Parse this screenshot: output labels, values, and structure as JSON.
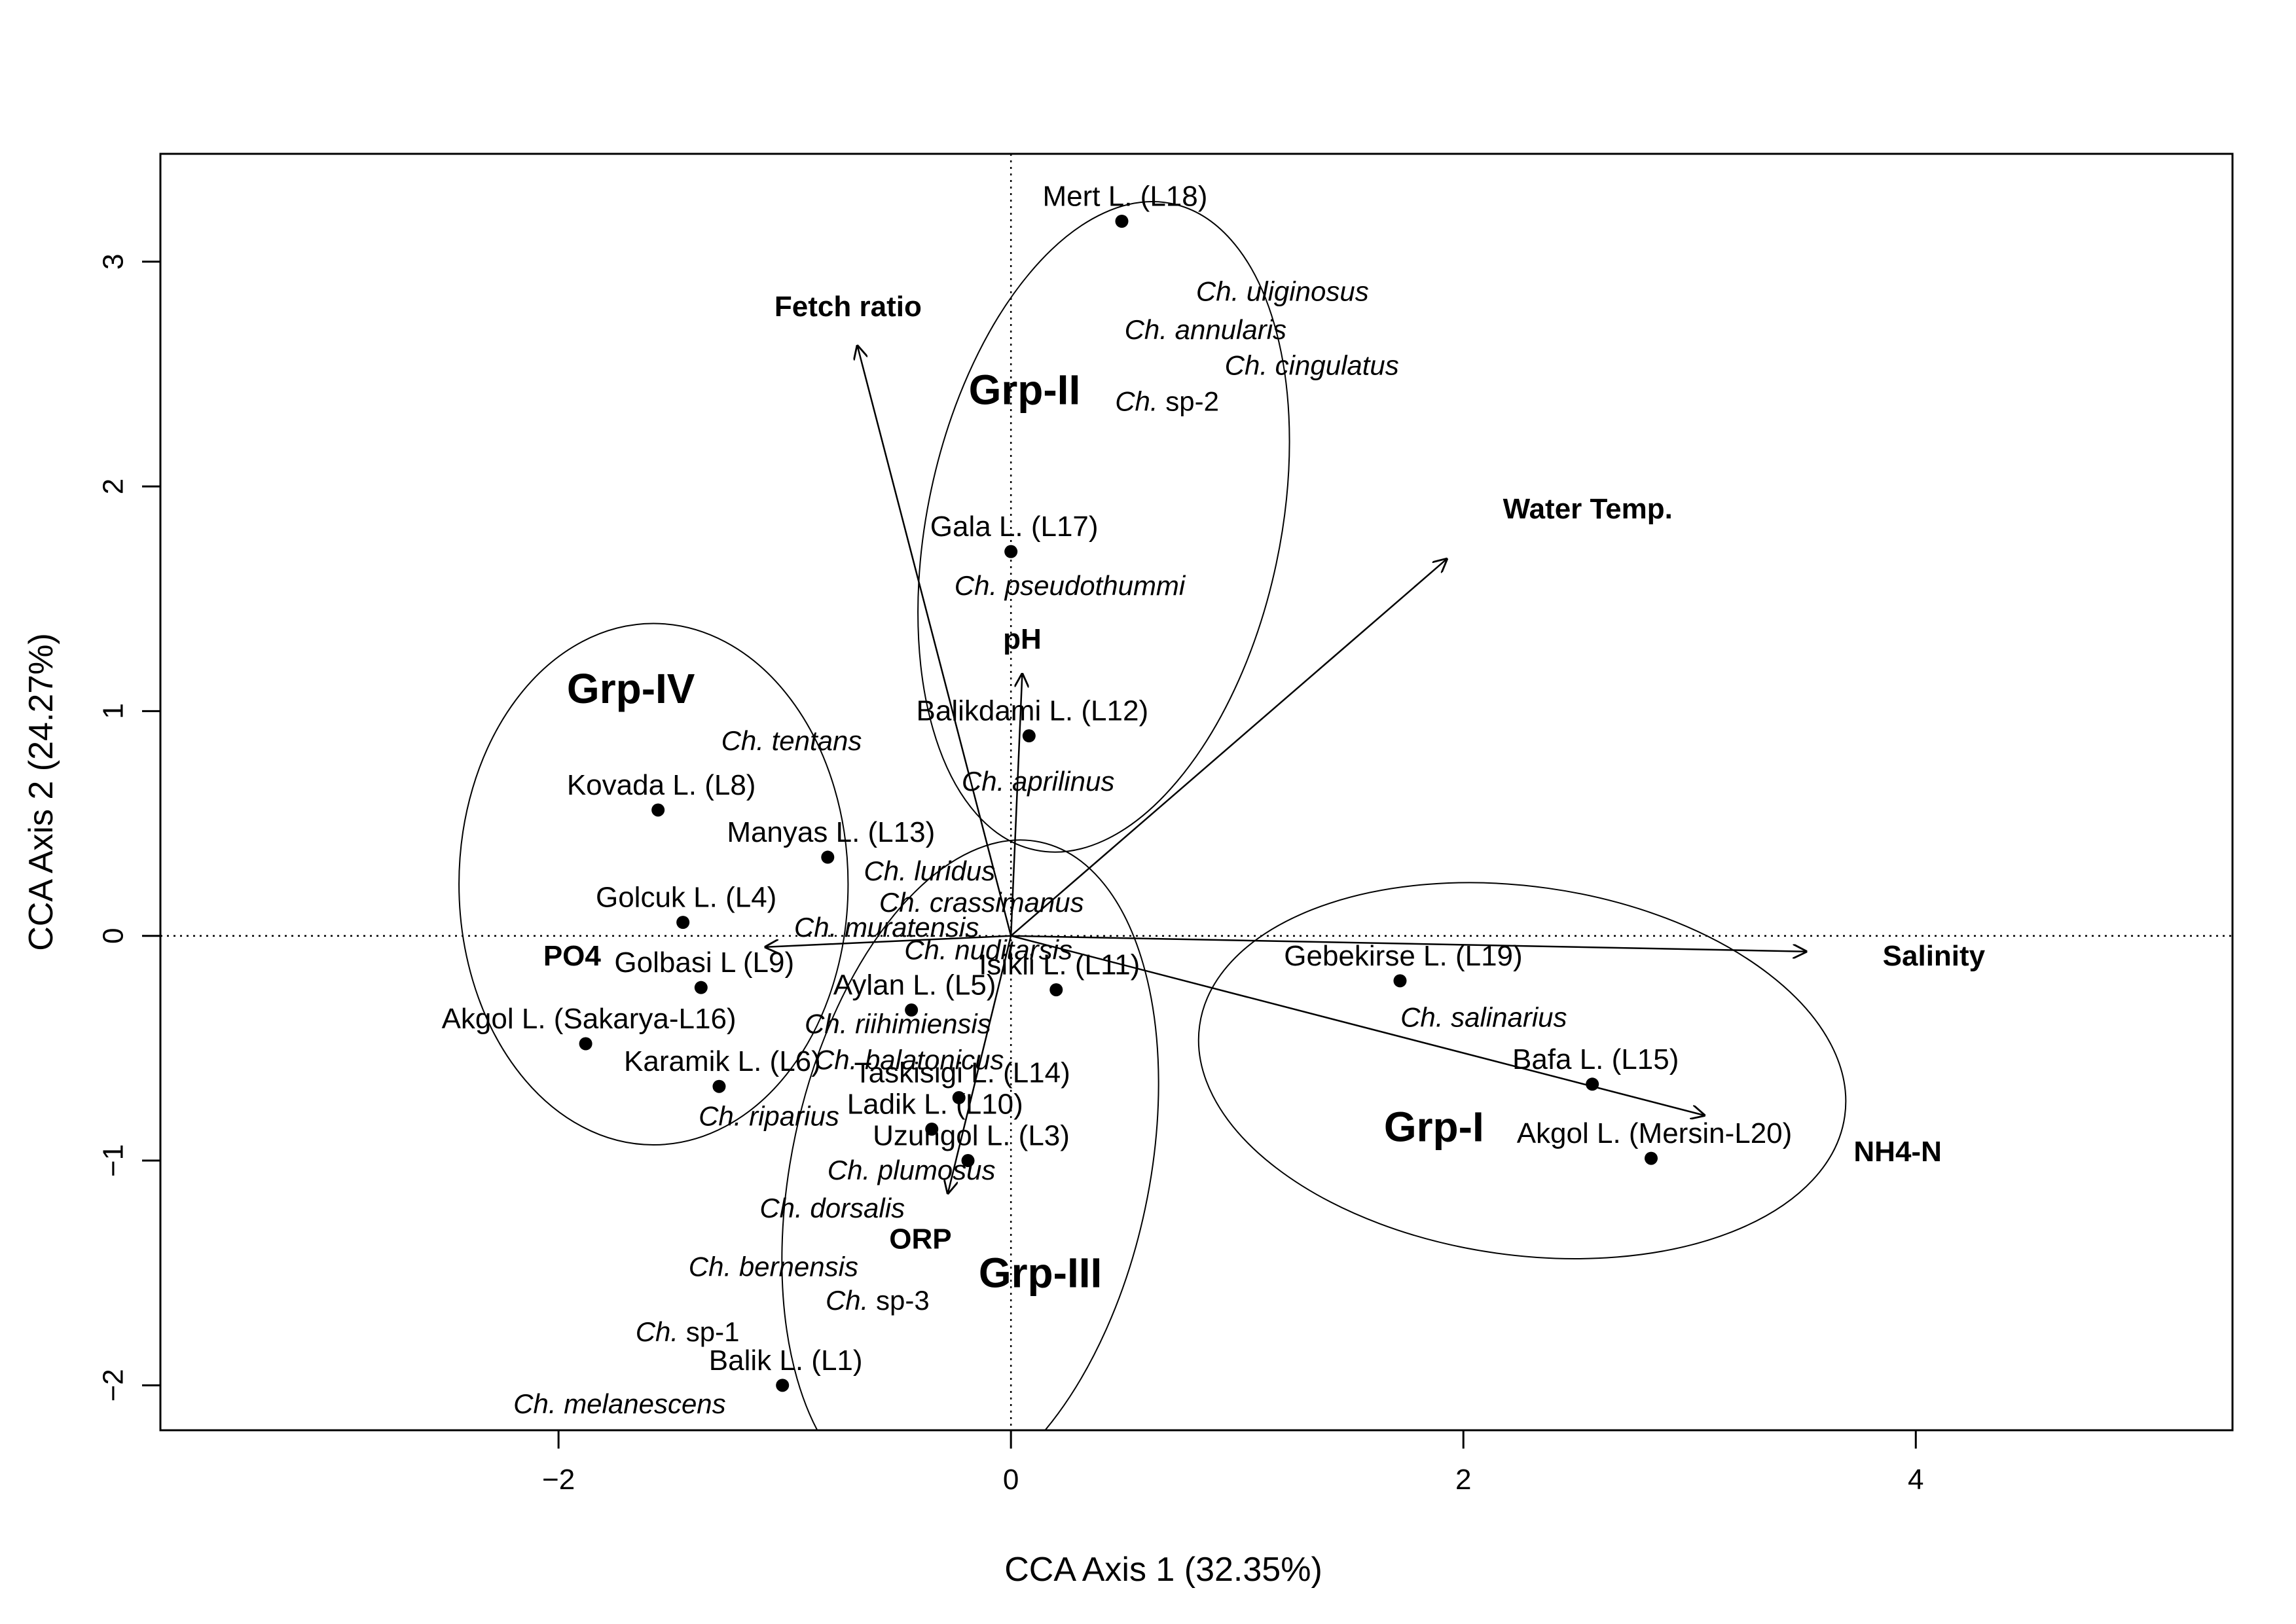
{
  "chart_data": {
    "type": "scatter",
    "title": "",
    "xlabel": "CCA Axis 1 (32.35%)",
    "ylabel": "CCA Axis 2 (24.27%)",
    "xlim": [
      -3.76,
      5.4
    ],
    "ylim": [
      -2.2,
      3.48
    ],
    "xticks": [
      -2,
      0,
      2,
      4
    ],
    "yticks": [
      -2,
      -1,
      0,
      1,
      2,
      3
    ],
    "reference_lines": [
      "x = 0",
      "y = 0"
    ],
    "grid": false,
    "legend": "none",
    "sites": [
      {
        "label": "Mert L. (L18)",
        "x": 0.49,
        "y": 3.18
      },
      {
        "label": "Gala L. (L17)",
        "x": 0.0,
        "y": 1.71
      },
      {
        "label": "Balikdami L. (L12)",
        "x": 0.08,
        "y": 0.89
      },
      {
        "label": "Kovada L. (L8)",
        "x": -1.56,
        "y": 0.56
      },
      {
        "label": "Manyas L. (L13)",
        "x": -0.81,
        "y": 0.35
      },
      {
        "label": "Golcuk L. (L4)",
        "x": -1.45,
        "y": 0.06
      },
      {
        "label": "Golbasi L (L9)",
        "x": -1.37,
        "y": -0.23
      },
      {
        "label": "Aylan L. (L5)",
        "x": -0.44,
        "y": -0.33
      },
      {
        "label": "Isikli L. (L11)",
        "x": 0.2,
        "y": -0.24
      },
      {
        "label": "Akgol L. (Sakarya-L16)",
        "x": -1.88,
        "y": -0.48
      },
      {
        "label": "Karamik L. (L6)",
        "x": -1.29,
        "y": -0.67
      },
      {
        "label": "Taskisigi L. (L14)",
        "x": -0.23,
        "y": -0.72
      },
      {
        "label": "Ladik L. (L10)",
        "x": -0.35,
        "y": -0.86
      },
      {
        "label": "Uzungol L. (L3)",
        "x": -0.19,
        "y": -1.0
      },
      {
        "label": "Balik L. (L1)",
        "x": -1.01,
        "y": -2.0
      },
      {
        "label": "Gebekirse L. (L19)",
        "x": 1.72,
        "y": -0.2
      },
      {
        "label": "Bafa L. (L15)",
        "x": 2.57,
        "y": -0.66
      },
      {
        "label": "Akgol L. (Mersin-L20)",
        "x": 2.83,
        "y": -0.99
      }
    ],
    "species": [
      {
        "genus": "Ch.",
        "epithet": "uliginosus",
        "italic_epithet": true,
        "x": 1.2,
        "y": 2.87
      },
      {
        "genus": "Ch.",
        "epithet": "annularis",
        "italic_epithet": true,
        "x": 0.86,
        "y": 2.7
      },
      {
        "genus": "Ch.",
        "epithet": "cingulatus",
        "italic_epithet": true,
        "x": 1.33,
        "y": 2.54
      },
      {
        "genus": "Ch.",
        "epithet": "sp-2",
        "italic_epithet": false,
        "x": 0.69,
        "y": 2.38
      },
      {
        "genus": "Ch.",
        "epithet": "pseudothummi",
        "italic_epithet": true,
        "x": 0.26,
        "y": 1.56
      },
      {
        "genus": "Ch.",
        "epithet": "tentans",
        "italic_epithet": true,
        "x": -0.97,
        "y": 0.87
      },
      {
        "genus": "Ch.",
        "epithet": "aprilinus",
        "italic_epithet": true,
        "x": 0.12,
        "y": 0.69
      },
      {
        "genus": "Ch.",
        "epithet": "luridus",
        "italic_epithet": true,
        "x": -0.36,
        "y": 0.29
      },
      {
        "genus": "Ch.",
        "epithet": "crassimanus",
        "italic_epithet": true,
        "x": -0.13,
        "y": 0.15
      },
      {
        "genus": "Ch.",
        "epithet": "muratensis",
        "italic_epithet": true,
        "x": -0.55,
        "y": 0.04
      },
      {
        "genus": "Ch.",
        "epithet": "nuditarsis",
        "italic_epithet": true,
        "x": -0.1,
        "y": -0.06
      },
      {
        "genus": "Ch.",
        "epithet": "riihimiensis",
        "italic_epithet": true,
        "x": -0.5,
        "y": -0.39
      },
      {
        "genus": "Ch.",
        "epithet": "balatonicus",
        "italic_epithet": true,
        "x": -0.45,
        "y": -0.55
      },
      {
        "genus": "Ch.",
        "epithet": "riparius",
        "italic_epithet": true,
        "x": -1.07,
        "y": -0.8
      },
      {
        "genus": "Ch.",
        "epithet": "plumosus",
        "italic_epithet": true,
        "x": -0.44,
        "y": -1.04
      },
      {
        "genus": "Ch.",
        "epithet": "dorsalis",
        "italic_epithet": true,
        "x": -0.79,
        "y": -1.21
      },
      {
        "genus": "Ch.",
        "epithet": "bernensis",
        "italic_epithet": true,
        "x": -1.05,
        "y": -1.47
      },
      {
        "genus": "Ch.",
        "epithet": "sp-3",
        "italic_epithet": false,
        "x": -0.59,
        "y": -1.62
      },
      {
        "genus": "Ch.",
        "epithet": "sp-1",
        "italic_epithet": false,
        "x": -1.43,
        "y": -1.76
      },
      {
        "genus": "Ch.",
        "epithet": "melanescens",
        "italic_epithet": true,
        "x": -1.73,
        "y": -2.08
      },
      {
        "genus": "Ch.",
        "epithet": "salinarius",
        "italic_epithet": true,
        "x": 2.09,
        "y": -0.36
      }
    ],
    "environmental_vectors": [
      {
        "label": "Fetch ratio",
        "x": -0.68,
        "y": 2.63,
        "label_x": -0.72,
        "label_y": 2.8
      },
      {
        "label": "Water Temp.",
        "x": 1.93,
        "y": 1.68,
        "label_x": 2.55,
        "label_y": 1.9
      },
      {
        "label": "pH",
        "x": 0.05,
        "y": 1.17,
        "label_x": 0.05,
        "label_y": 1.32
      },
      {
        "label": "PO4",
        "x": -1.09,
        "y": -0.05,
        "label_x": -1.94,
        "label_y": -0.09
      },
      {
        "label": "Salinity",
        "x": 3.52,
        "y": -0.07,
        "label_x": 4.08,
        "label_y": -0.09
      },
      {
        "label": "ORP",
        "x": -0.28,
        "y": -1.15,
        "label_x": -0.4,
        "label_y": -1.35
      },
      {
        "label": "NH4-N",
        "x": 3.07,
        "y": -0.8,
        "label_x": 3.92,
        "label_y": -0.96
      }
    ],
    "groups": [
      {
        "label": "Grp-I",
        "label_x": 1.87,
        "label_y": -0.85,
        "cx": 2.26,
        "cy": -0.6,
        "rx": 1.44,
        "ry": 0.82,
        "angle": 8
      },
      {
        "label": "Grp-II",
        "label_x": 0.06,
        "label_y": 2.43,
        "cx": 0.41,
        "cy": 1.82,
        "rx": 0.78,
        "ry": 1.47,
        "angle": 12
      },
      {
        "label": "Grp-III",
        "label_x": 0.13,
        "label_y": -1.5,
        "cx": -0.18,
        "cy": -1.05,
        "rx": 0.79,
        "ry": 1.5,
        "angle": 12
      },
      {
        "label": "Grp-IV",
        "label_x": -1.68,
        "label_y": 1.1,
        "cx": -1.58,
        "cy": 0.23,
        "rx": 0.86,
        "ry": 1.16,
        "angle": 0
      }
    ]
  }
}
